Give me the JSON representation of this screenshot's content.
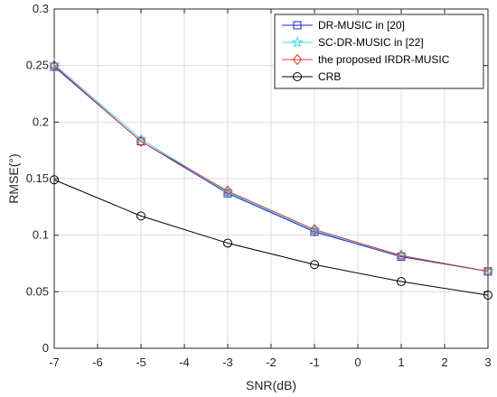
{
  "chart_data": {
    "type": "line",
    "xlabel": "SNR(dB)",
    "ylabel": "RMSE(°)",
    "xlim": [
      -7,
      3
    ],
    "ylim": [
      0,
      0.3
    ],
    "xticks": [
      "-7",
      "-6",
      "-5",
      "-4",
      "-3",
      "-2",
      "-1",
      "0",
      "1",
      "2",
      "3"
    ],
    "yticks": [
      "0",
      "0.05",
      "0.1",
      "0.15",
      "0.2",
      "0.25",
      "0.3"
    ],
    "grid": true,
    "legend_position": "top-right",
    "x": [
      -7,
      -5,
      -3,
      -1,
      1,
      3
    ],
    "series": [
      {
        "name": "DR-MUSIC in [20]",
        "color": "#2020c8",
        "marker": "square",
        "values": [
          0.249,
          0.183,
          0.137,
          0.103,
          0.081,
          0.068
        ]
      },
      {
        "name": "SC-DR-MUSIC in [22]",
        "color": "#3fd8ea",
        "marker": "pentagram",
        "values": [
          0.251,
          0.185,
          0.138,
          0.104,
          0.082,
          0.068
        ]
      },
      {
        "name": "the proposed IRDR-MUSIC",
        "color": "#d9402c",
        "marker": "diamond",
        "values": [
          0.25,
          0.183,
          0.139,
          0.105,
          0.082,
          0.068
        ]
      },
      {
        "name": "CRB",
        "color": "#000000",
        "marker": "circle",
        "values": [
          0.149,
          0.117,
          0.093,
          0.074,
          0.059,
          0.047
        ]
      }
    ]
  }
}
